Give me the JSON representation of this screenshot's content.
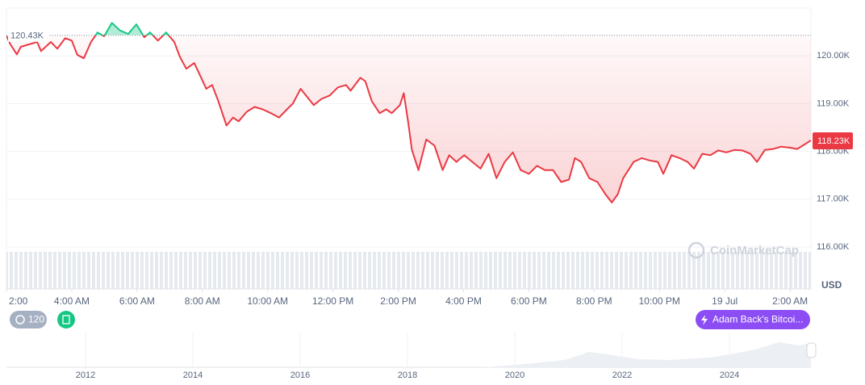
{
  "chart_data": {
    "type": "line",
    "x": [
      2.0,
      2.12,
      2.32,
      2.44,
      2.69,
      2.94,
      3.06,
      3.36,
      3.56,
      3.8,
      4.0,
      4.17,
      4.37,
      4.59,
      4.79,
      4.99,
      5.23,
      5.48,
      5.73,
      5.98,
      6.22,
      6.4,
      6.64,
      6.89,
      7.14,
      7.31,
      7.51,
      7.75,
      7.95,
      8.12,
      8.3,
      8.49,
      8.74,
      8.94,
      9.11,
      9.36,
      9.6,
      9.85,
      10.1,
      10.35,
      10.59,
      10.77,
      11.01,
      11.21,
      11.41,
      11.65,
      11.9,
      12.15,
      12.4,
      12.54,
      12.84,
      12.99,
      13.19,
      13.43,
      13.63,
      13.8,
      14.05,
      14.17,
      14.3,
      14.42,
      14.62,
      14.86,
      15.11,
      15.36,
      15.56,
      15.78,
      16.02,
      16.27,
      16.52,
      16.77,
      17.01,
      17.26,
      17.51,
      17.75,
      18.0,
      18.25,
      18.49,
      18.74,
      18.99,
      19.23,
      19.41,
      19.6,
      19.85,
      20.1,
      20.35,
      20.54,
      20.72,
      20.89,
      21.21,
      21.46,
      21.7,
      21.95,
      22.12,
      22.37,
      22.62,
      22.86,
      23.06,
      23.31,
      23.56,
      23.8,
      24.05,
      24.3,
      24.54,
      24.79,
      24.99,
      25.23,
      25.48,
      25.73,
      25.98,
      26.22,
      26.64
    ],
    "series": [
      {
        "color": "#ea3943",
        "values": [
          120420,
          120240,
          120030,
          120190,
          120240,
          120290,
          120100,
          120290,
          120150,
          120370,
          120320,
          120020,
          119950,
          120290,
          120490,
          120410,
          120690,
          120530,
          120460,
          120660,
          120390,
          120490,
          120320,
          120490,
          120290,
          119980,
          119730,
          119850,
          119560,
          119310,
          119390,
          119050,
          118540,
          118710,
          118630,
          118830,
          118930,
          118880,
          118800,
          118710,
          118880,
          119000,
          119310,
          119140,
          118970,
          119100,
          119170,
          119340,
          119390,
          119270,
          119540,
          119470,
          119050,
          118800,
          118880,
          118800,
          118970,
          119220,
          118630,
          118030,
          117610,
          118250,
          118120,
          117610,
          117920,
          117780,
          117920,
          117780,
          117640,
          117950,
          117440,
          117780,
          117980,
          117610,
          117530,
          117700,
          117610,
          117610,
          117360,
          117410,
          117860,
          117780,
          117440,
          117360,
          117100,
          116930,
          117100,
          117440,
          117780,
          117860,
          117810,
          117780,
          117530,
          117920,
          117860,
          117780,
          117640,
          117950,
          117920,
          118020,
          117980,
          118030,
          118020,
          117950,
          117780,
          118030,
          118050,
          118100,
          118080,
          118050,
          118230
        ]
      }
    ],
    "color_above": "#16c784",
    "xlim": [
      2,
      26.64
    ],
    "xticks": [
      {
        "value": 2,
        "label": "2:00"
      },
      {
        "value": 4,
        "label": "4:00 AM"
      },
      {
        "value": 6,
        "label": "6:00 AM"
      },
      {
        "value": 8,
        "label": "8:00 AM"
      },
      {
        "value": 10,
        "label": "10:00 AM"
      },
      {
        "value": 12,
        "label": "12:00 PM"
      },
      {
        "value": 14,
        "label": "2:00 PM"
      },
      {
        "value": 16,
        "label": "4:00 PM"
      },
      {
        "value": 18,
        "label": "6:00 PM"
      },
      {
        "value": 20,
        "label": "8:00 PM"
      },
      {
        "value": 22,
        "label": "10:00 PM"
      },
      {
        "value": 24,
        "label": "19 Jul"
      },
      {
        "value": 26,
        "label": "2:00 AM"
      }
    ],
    "ylim": [
      116000,
      121000
    ],
    "yticks": [
      {
        "value": 116000,
        "label": "116.00K"
      },
      {
        "value": 117000,
        "label": "117.00K"
      },
      {
        "value": 118000,
        "label": "118.00K"
      },
      {
        "value": 119000,
        "label": "119.00K"
      },
      {
        "value": 120000,
        "label": "120.00K"
      }
    ],
    "grid": true,
    "reference": {
      "value": 120430,
      "label": "120.43K"
    },
    "last_price": {
      "value": 118230,
      "label": "118.23K"
    },
    "currency": "USD",
    "watermark": "CoinMarketCap",
    "badge": "120",
    "event": "Adam Back's Bitcoi...",
    "navigator": {
      "labels": [
        "2012",
        "2014",
        "2016",
        "2018",
        "2020",
        "2022",
        "2024"
      ]
    }
  }
}
